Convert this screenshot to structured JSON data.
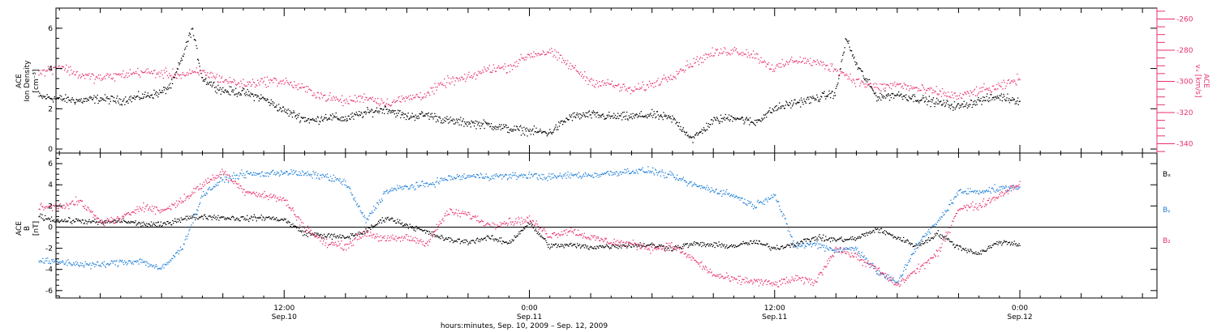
{
  "colors": {
    "black": "#000000",
    "blue": "#1f7fd8",
    "pink": "#e8336b",
    "axis": "#000000"
  },
  "chart_data": [
    {
      "type": "scatter",
      "panel": "top",
      "ylabel": "ACE Ion Density [cm⁻³]",
      "ylabel_lines": [
        "ACE",
        "Ion Density",
        "[cm⁻³]"
      ],
      "y2label": "ACE vₓ [km/s]",
      "y2label_lines": [
        "ACE",
        "vₓ [km/s]"
      ],
      "ylim": [
        -0.2,
        7.0
      ],
      "yticks": [
        0,
        2,
        4,
        6
      ],
      "y2lim": [
        -346,
        -253
      ],
      "y2ticks": [
        -260,
        -280,
        -300,
        -320,
        -340
      ],
      "x_range_hours": [
        0,
        48
      ],
      "series": [
        {
          "name": "Ion Density",
          "color": "#000000",
          "axis": "left",
          "x": [
            0,
            1,
            2,
            3,
            4,
            5,
            6,
            6.5,
            7,
            7.5,
            8,
            9,
            10,
            11,
            11.5,
            12,
            13,
            13.5,
            14,
            15,
            16,
            17,
            18,
            19,
            20,
            21,
            22,
            23,
            24,
            25,
            26,
            27,
            28,
            29,
            30,
            31,
            32,
            33,
            34,
            35,
            36,
            37,
            38,
            39,
            39.5,
            40,
            41,
            42,
            43,
            44,
            45,
            46,
            47,
            48
          ],
          "values": [
            2.6,
            2.5,
            2.4,
            2.5,
            2.4,
            2.6,
            2.8,
            3.2,
            4.5,
            6.0,
            3.5,
            2.9,
            2.8,
            2.5,
            2.2,
            1.9,
            1.5,
            1.4,
            1.6,
            1.5,
            1.8,
            2.0,
            1.6,
            1.7,
            1.4,
            1.3,
            1.2,
            1.0,
            0.9,
            0.8,
            1.6,
            1.7,
            1.6,
            1.6,
            1.7,
            1.5,
            0.5,
            1.4,
            1.6,
            1.3,
            2.0,
            2.3,
            2.5,
            2.8,
            5.5,
            4.2,
            2.6,
            2.7,
            2.5,
            2.3,
            2.1,
            2.4,
            2.6,
            2.4
          ]
        },
        {
          "name": "Vx",
          "color": "#e8336b",
          "axis": "right",
          "x": [
            0,
            1,
            2,
            3,
            4,
            5,
            6,
            7,
            8,
            9,
            10,
            11,
            12,
            13,
            14,
            15,
            16,
            17,
            18,
            19,
            20,
            21,
            22,
            23,
            24,
            25,
            26,
            27,
            28,
            29,
            30,
            31,
            32,
            33,
            34,
            35,
            36,
            37,
            38,
            39,
            40,
            41,
            42,
            43,
            44,
            45,
            46,
            47,
            48
          ],
          "values": [
            -295,
            -290,
            -296,
            -298,
            -296,
            -294,
            -295,
            -296,
            -294,
            -299,
            -302,
            -300,
            -300,
            -305,
            -310,
            -313,
            -310,
            -314,
            -311,
            -308,
            -300,
            -298,
            -292,
            -291,
            -283,
            -281,
            -290,
            -300,
            -302,
            -306,
            -302,
            -296,
            -288,
            -282,
            -280,
            -283,
            -292,
            -286,
            -288,
            -292,
            -300,
            -304,
            -302,
            -305,
            -307,
            -310,
            -306,
            -304,
            -298
          ]
        }
      ]
    },
    {
      "type": "scatter",
      "panel": "bottom",
      "ylabel": "ACE B [nT]",
      "ylabel_lines": [
        "ACE",
        "B",
        "[nT]"
      ],
      "ylim": [
        -6.7,
        7.0
      ],
      "yticks": [
        -6,
        -4,
        -2,
        0,
        2,
        4,
        6
      ],
      "x_range_hours": [
        0,
        48
      ],
      "legend": [
        "Bₓ",
        "Bᵧ",
        "B₂"
      ],
      "series": [
        {
          "name": "Bx",
          "label": "Bₓ",
          "color": "#000000",
          "x": [
            0,
            1,
            2,
            3,
            4,
            5,
            6,
            7,
            8,
            9,
            10,
            11,
            12,
            13,
            14,
            15,
            16,
            17,
            18,
            19,
            20,
            21,
            22,
            23,
            24,
            25,
            26,
            27,
            28,
            29,
            30,
            31,
            32,
            33,
            34,
            35,
            36,
            37,
            38,
            39,
            40,
            41,
            42,
            43,
            44,
            45,
            46,
            47,
            48
          ],
          "values": [
            1.0,
            0.6,
            0.6,
            0.4,
            0.6,
            0.3,
            0.2,
            0.8,
            1.0,
            0.9,
            0.8,
            0.9,
            0.7,
            -0.6,
            -0.8,
            -1.0,
            -0.4,
            0.9,
            0.2,
            -0.5,
            -1.2,
            -1.4,
            -1.0,
            -1.5,
            0.4,
            -1.8,
            -1.7,
            -1.9,
            -1.8,
            -1.7,
            -1.7,
            -2.0,
            -1.6,
            -1.7,
            -1.8,
            -1.4,
            -2.0,
            -1.6,
            -1.0,
            -1.2,
            -1.1,
            -0.2,
            -1.0,
            -1.8,
            -0.6,
            -1.9,
            -2.5,
            -1.4,
            -1.6
          ]
        },
        {
          "name": "By",
          "label": "Bᵧ",
          "color": "#1f7fd8",
          "x": [
            0,
            1,
            2,
            3,
            4,
            5,
            6,
            7,
            8,
            9,
            10,
            11,
            12,
            13,
            14,
            15,
            16,
            17,
            18,
            19,
            20,
            21,
            22,
            23,
            24,
            25,
            26,
            27,
            28,
            29,
            30,
            31,
            32,
            33,
            34,
            35,
            36,
            37,
            38,
            39,
            40,
            41,
            42,
            43,
            44,
            45,
            46,
            47,
            48
          ],
          "values": [
            -3.2,
            -3.3,
            -3.5,
            -3.6,
            -3.3,
            -3.2,
            -4.0,
            -2.0,
            3.0,
            4.5,
            5.0,
            5.0,
            5.2,
            5.0,
            4.8,
            4.2,
            0.6,
            3.4,
            3.8,
            4.0,
            4.6,
            4.8,
            4.8,
            4.8,
            4.9,
            4.7,
            4.9,
            4.9,
            5.1,
            5.3,
            5.3,
            4.8,
            4.0,
            3.5,
            3.0,
            2.0,
            3.1,
            -1.8,
            -1.6,
            -2.2,
            -2.0,
            -4.2,
            -5.3,
            -1.6,
            0.5,
            3.3,
            3.4,
            3.6,
            3.8
          ]
        },
        {
          "name": "Bz",
          "label": "B₂",
          "color": "#e8336b",
          "x": [
            0,
            1,
            2,
            3,
            4,
            5,
            6,
            7,
            8,
            9,
            10,
            11,
            12,
            13,
            14,
            15,
            16,
            17,
            18,
            19,
            20,
            21,
            22,
            23,
            24,
            25,
            26,
            27,
            28,
            29,
            30,
            31,
            32,
            33,
            34,
            35,
            36,
            37,
            38,
            39,
            40,
            41,
            42,
            43,
            44,
            45,
            46,
            47,
            48
          ],
          "values": [
            1.8,
            2.0,
            2.4,
            0.5,
            0.7,
            2.0,
            1.5,
            2.5,
            4.0,
            5.2,
            3.5,
            3.0,
            2.6,
            0.0,
            -1.5,
            -1.8,
            -0.5,
            -1.2,
            -1.0,
            -1.5,
            1.4,
            1.2,
            0.2,
            0.5,
            0.7,
            -0.8,
            -0.3,
            -1.0,
            -1.4,
            -1.6,
            -2.0,
            -1.8,
            -3.0,
            -4.5,
            -5.0,
            -5.1,
            -5.4,
            -4.9,
            -5.2,
            -2.0,
            -2.8,
            -4.0,
            -5.5,
            -4.0,
            -2.5,
            1.8,
            2.0,
            3.0,
            4.2
          ]
        }
      ]
    }
  ],
  "xaxis": {
    "ticks": [
      {
        "hour": 12,
        "label": "12:00",
        "sublabel": "Sep.10"
      },
      {
        "hour": 24,
        "label": "0:00",
        "sublabel": "Sep.11"
      },
      {
        "hour": 36,
        "label": "12:00",
        "sublabel": "Sep.11"
      },
      {
        "hour": 48,
        "label": "0:00",
        "sublabel": "Sep.12"
      }
    ],
    "title": "hours:minutes, Sep. 10, 2009 – Sep. 12, 2009",
    "grid": false
  }
}
